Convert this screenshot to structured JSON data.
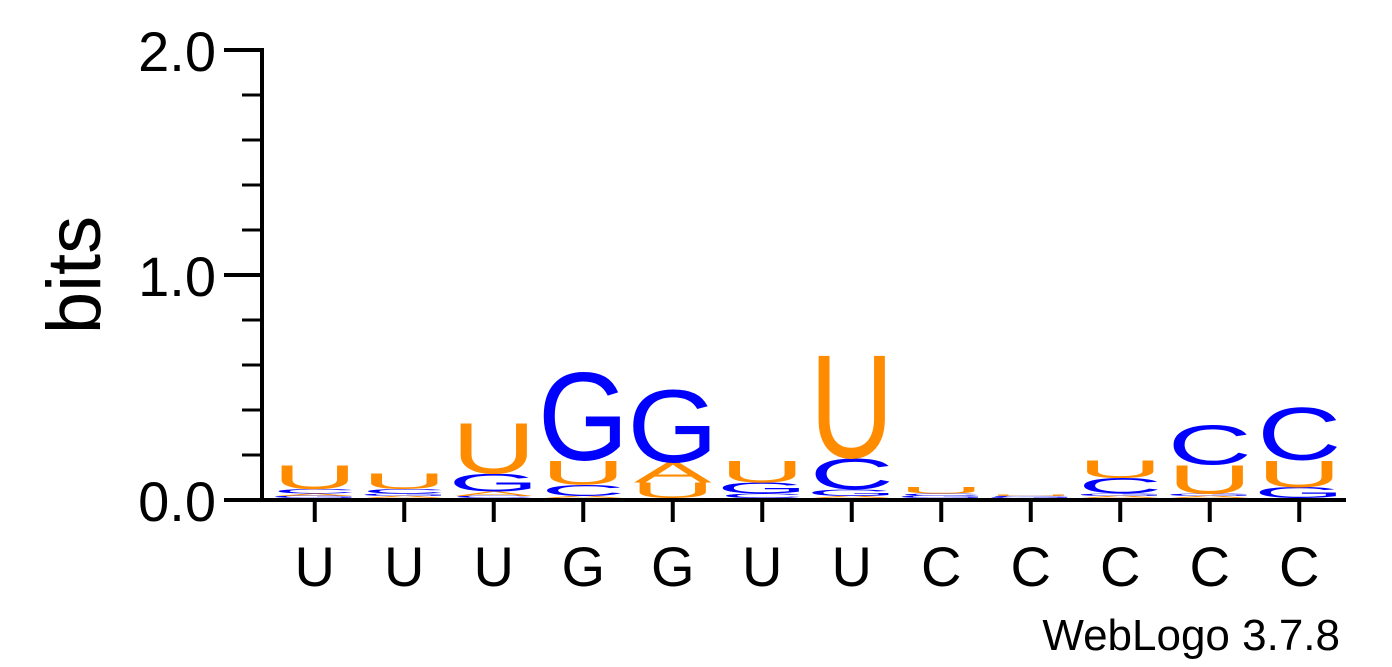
{
  "chart_data": {
    "type": "sequence-logo",
    "ylabel": "bits",
    "ylim": [
      0,
      2
    ],
    "yticks": [
      "0.0",
      "1.0",
      "2.0"
    ],
    "xticklabels": [
      "U",
      "U",
      "U",
      "G",
      "G",
      "U",
      "U",
      "C",
      "C",
      "C",
      "C",
      "C"
    ],
    "credit": "WebLogo 3.7.8",
    "colors": {
      "A": "#ff8c00",
      "U": "#ff8c00",
      "G": "#0000ff",
      "C": "#0000ff"
    },
    "positions": [
      [
        {
          "l": "G",
          "h": 0.01
        },
        {
          "l": "A",
          "h": 0.01
        },
        {
          "l": "C",
          "h": 0.02
        },
        {
          "l": "U",
          "h": 0.11
        }
      ],
      [
        {
          "l": "A",
          "h": 0.01
        },
        {
          "l": "G",
          "h": 0.01
        },
        {
          "l": "C",
          "h": 0.02
        },
        {
          "l": "U",
          "h": 0.07
        }
      ],
      [
        {
          "l": "C",
          "h": 0.01
        },
        {
          "l": "A",
          "h": 0.02
        },
        {
          "l": "G",
          "h": 0.08
        },
        {
          "l": "U",
          "h": 0.23
        }
      ],
      [
        {
          "l": "A",
          "h": 0.01
        },
        {
          "l": "C",
          "h": 0.05
        },
        {
          "l": "U",
          "h": 0.11
        },
        {
          "l": "G",
          "h": 0.4
        }
      ],
      [
        {
          "l": "U",
          "h": 0.07
        },
        {
          "l": "A",
          "h": 0.09
        },
        {
          "l": "G",
          "h": 0.33
        }
      ],
      [
        {
          "l": "C",
          "h": 0.02
        },
        {
          "l": "G",
          "h": 0.05
        },
        {
          "l": "U",
          "h": 0.1
        }
      ],
      [
        {
          "l": "A",
          "h": 0.01
        },
        {
          "l": "G",
          "h": 0.03
        },
        {
          "l": "C",
          "h": 0.14
        },
        {
          "l": "U",
          "h": 0.47
        }
      ],
      [
        {
          "l": "G",
          "h": 0.01
        },
        {
          "l": "C",
          "h": 0.01
        },
        {
          "l": "U",
          "h": 0.03
        }
      ],
      [
        {
          "l": "G",
          "h": 0.005
        },
        {
          "l": "C",
          "h": 0.005
        },
        {
          "l": "U",
          "h": 0.005
        }
      ],
      [
        {
          "l": "A",
          "h": 0.01
        },
        {
          "l": "G",
          "h": 0.01
        },
        {
          "l": "C",
          "h": 0.07
        },
        {
          "l": "U",
          "h": 0.08
        }
      ],
      [
        {
          "l": "A",
          "h": 0.01
        },
        {
          "l": "G",
          "h": 0.01
        },
        {
          "l": "U",
          "h": 0.13
        },
        {
          "l": "C",
          "h": 0.18
        }
      ],
      [
        {
          "l": "G",
          "h": 0.05
        },
        {
          "l": "U",
          "h": 0.12
        },
        {
          "l": "C",
          "h": 0.24
        }
      ]
    ]
  }
}
